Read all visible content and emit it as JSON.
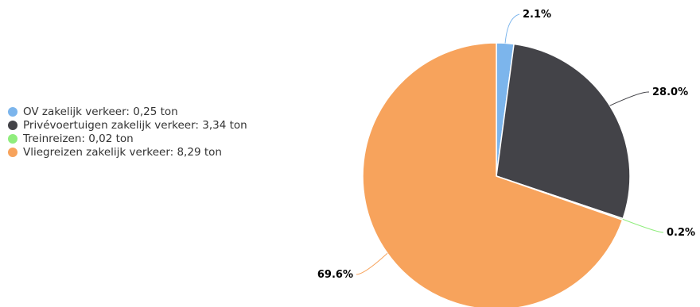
{
  "chart_data": {
    "type": "pie",
    "title": "",
    "legend_position": "left",
    "slices": [
      {
        "label": "OV zakelijk verkeer: 0,25 ton",
        "value": 0.25,
        "percent_label": "2.1%",
        "color": "#7cb5ec"
      },
      {
        "label": "Privévoertuigen zakelijk verkeer: 3,34 ton",
        "value": 3.34,
        "percent_label": "28.0%",
        "color": "#434348"
      },
      {
        "label": "Treinreizen: 0,02 ton",
        "value": 0.02,
        "percent_label": "0.2%",
        "color": "#90ed7d"
      },
      {
        "label": "Vliegreizen zakelijk verkeer: 8,29 ton",
        "value": 8.29,
        "percent_label": "69.6%",
        "color": "#f7a35c"
      }
    ]
  }
}
